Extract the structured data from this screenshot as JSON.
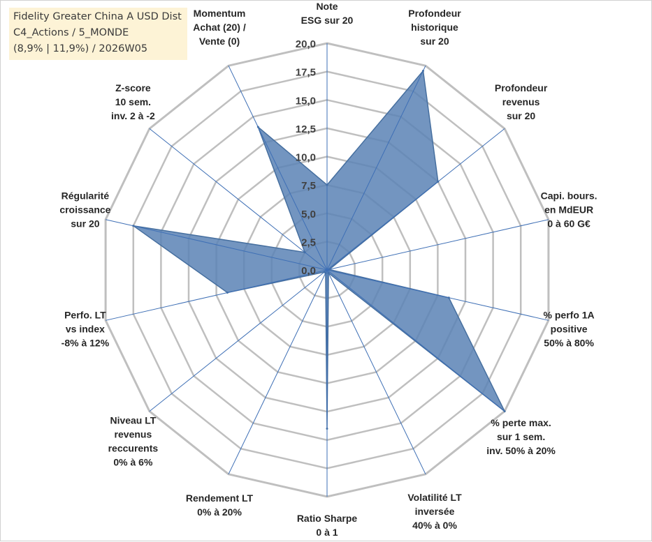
{
  "header": {
    "line1": "Fidelity Greater China A USD Dist",
    "line2": "C4_Actions / 5_MONDE",
    "line3": "(8,9% | 11,9%) / 2026W05"
  },
  "chart_data": {
    "type": "radar",
    "title": "Fidelity Greater China A USD Dist",
    "rmin": 0,
    "rmax": 20,
    "tick_step": 2.5,
    "tick_labels": [
      "0,0",
      "2,5",
      "5,0",
      "7,5",
      "10,0",
      "12,5",
      "15,0",
      "17,5",
      "20,0"
    ],
    "axes": [
      {
        "lines": [
          "Note",
          "ESG sur 20"
        ],
        "value": 7.5
      },
      {
        "lines": [
          "Profondeur",
          "historique",
          "sur 20"
        ],
        "value": 19.5
      },
      {
        "lines": [
          "Profondeur",
          "revenus",
          "sur 20"
        ],
        "value": 12.5
      },
      {
        "lines": [
          "Capi. bours.",
          "en MdEUR",
          "0 à 60 G€"
        ],
        "value": 0.2
      },
      {
        "lines": [
          "% perfo 1A",
          "positive",
          "50% à 80%"
        ],
        "value": 11.0
      },
      {
        "lines": [
          "% perte max.",
          "sur 1 sem.",
          "inv. 50% à 20%"
        ],
        "value": 20.0
      },
      {
        "lines": [
          "Volatilité LT",
          "inversée",
          "40% à 0%"
        ],
        "value": 0.3
      },
      {
        "lines": [
          "Ratio Sharpe",
          "0 à 1"
        ],
        "value": 14.0
      },
      {
        "lines": [
          "Rendement LT",
          "0% à 20%"
        ],
        "value": 0.3
      },
      {
        "lines": [
          "Niveau LT",
          "revenus",
          "reccurents",
          "0% à 6%"
        ],
        "value": 0.3
      },
      {
        "lines": [
          "Perfo. LT",
          "vs index",
          "-8% à 12%"
        ],
        "value": 9.0
      },
      {
        "lines": [
          "Régularité",
          "croissance",
          "sur 20"
        ],
        "value": 17.5
      },
      {
        "lines": [
          "Z-score",
          "10 sem.",
          "inv. 2 à -2"
        ],
        "value": 2.5
      },
      {
        "lines": [
          "Momentum",
          "Achat (20) /",
          "Vente (0)"
        ],
        "value": 14.0
      }
    ],
    "colors": {
      "fill": "#5b83b5",
      "stroke": "#466f9f",
      "grid": "#bfbfbf",
      "spoke": "#3e6fb5",
      "text": "#262626"
    }
  }
}
